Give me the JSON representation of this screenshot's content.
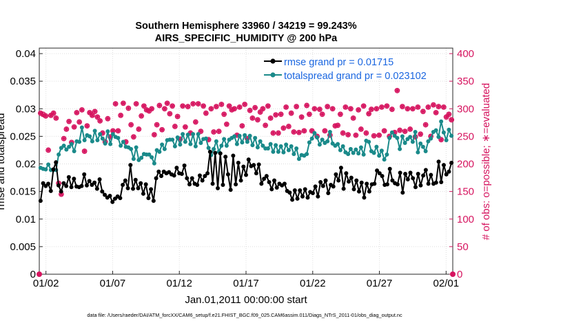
{
  "chart_data": {
    "type": "line",
    "title_line1": "Southern Hemisphere 33960 / 34219 = 99.243%",
    "title_line2": "AIRS_SPECIFIC_HUMIDITY @ 200 hPa",
    "xlabel": "Jan.01,2011 00:00:00 start",
    "ylabel_left": "rmse and totalspread",
    "ylabel_right": "# of obs: o=possible; ∗=evaluated",
    "footer": "data file: /Users/raeder/DAI/ATM_forcXX/CAM6_setup/f.e21.FHIST_BGC.f09_025.CAM6assim.011/Diags_NTrS_2011-01/obs_diag_output.nc",
    "x_range_days": [
      0.5,
      31.5
    ],
    "x_ticks": [
      {
        "day": 1,
        "label": "01/02"
      },
      {
        "day": 6,
        "label": "01/07"
      },
      {
        "day": 11,
        "label": "01/12"
      },
      {
        "day": 16,
        "label": "01/17"
      },
      {
        "day": 21,
        "label": "01/22"
      },
      {
        "day": 26,
        "label": "01/27"
      },
      {
        "day": 31,
        "label": "02/01"
      }
    ],
    "ylim_left": [
      0,
      0.041
    ],
    "yticks_left": [
      "0",
      "0.005",
      "0.01",
      "0.015",
      "0.02",
      "0.025",
      "0.03",
      "0.035",
      "0.04"
    ],
    "ylim_right": [
      0,
      410
    ],
    "yticks_right": [
      "0",
      "50",
      "100",
      "150",
      "200",
      "250",
      "300",
      "350",
      "400"
    ],
    "series": [
      {
        "name": "rmse grand pr = 0.01715",
        "color": "#000000",
        "values": [
          0.0133,
          0.0165,
          0.016,
          0.0164,
          0.0151,
          0.019,
          0.0203,
          0.0161,
          0.015,
          0.0165,
          0.016,
          0.0176,
          0.0158,
          0.0173,
          0.0159,
          0.0158,
          0.016,
          0.0181,
          0.0161,
          0.0169,
          0.0162,
          0.0166,
          0.0155,
          0.0172,
          0.015,
          0.0144,
          0.0139,
          0.0142,
          0.0131,
          0.0137,
          0.0141,
          0.0138,
          0.0162,
          0.017,
          0.0156,
          0.0198,
          0.0155,
          0.0171,
          0.0156,
          0.0165,
          0.0146,
          0.0163,
          0.0138,
          0.0154,
          0.0133,
          0.0174,
          0.0186,
          0.0178,
          0.0186,
          0.0183,
          0.0185,
          0.0181,
          0.0179,
          0.0193,
          0.0183,
          0.0182,
          0.0197,
          0.0174,
          0.0163,
          0.0174,
          0.0164,
          0.0162,
          0.0179,
          0.017,
          0.0178,
          0.0183,
          0.0222,
          0.0164,
          0.022,
          0.0156,
          0.0219,
          0.0162,
          0.0213,
          0.0181,
          0.0153,
          0.0215,
          0.0163,
          0.0202,
          0.017,
          0.0195,
          0.018,
          0.0208,
          0.0196,
          0.0198,
          0.0183,
          0.0199,
          0.0164,
          0.0173,
          0.0178,
          0.0167,
          0.0154,
          0.017,
          0.0157,
          0.0164,
          0.0161,
          0.0164,
          0.0151,
          0.0148,
          0.0135,
          0.0152,
          0.0137,
          0.0152,
          0.0141,
          0.0154,
          0.0139,
          0.0149,
          0.0147,
          0.0159,
          0.0141,
          0.0167,
          0.016,
          0.017,
          0.0147,
          0.0162,
          0.0159,
          0.0181,
          0.017,
          0.0193,
          0.0155,
          0.0183,
          0.0168,
          0.0175,
          0.0154,
          0.017,
          0.015,
          0.0166,
          0.0139,
          0.0164,
          0.015,
          0.0163,
          0.0164,
          0.0188,
          0.0183,
          0.0178,
          0.0162,
          0.0163,
          0.0191,
          0.017,
          0.0165,
          0.0163,
          0.0184,
          0.0148,
          0.0182,
          0.0172,
          0.0184,
          0.0174,
          0.0158,
          0.0182,
          0.0161,
          0.0179,
          0.0189,
          0.0164,
          0.018,
          0.0164,
          0.0166,
          0.0204,
          0.0167,
          0.0198,
          0.0181,
          0.0186,
          0.0202
        ]
      },
      {
        "name": "totalspread grand pr = 0.023102",
        "color": "#1a8a8a",
        "values": [
          0.0193,
          0.0191,
          0.019,
          0.0199,
          0.0189,
          0.0189,
          0.0189,
          0.0217,
          0.0229,
          0.0233,
          0.0226,
          0.0231,
          0.0236,
          0.0223,
          0.0241,
          0.024,
          0.0266,
          0.0243,
          0.0252,
          0.025,
          0.0241,
          0.026,
          0.0243,
          0.0254,
          0.0246,
          0.0237,
          0.0259,
          0.0236,
          0.0254,
          0.0249,
          0.0247,
          0.0233,
          0.024,
          0.0231,
          0.023,
          0.0227,
          0.0209,
          0.023,
          0.0207,
          0.0211,
          0.0218,
          0.0217,
          0.0217,
          0.0212,
          0.0201,
          0.0225,
          0.0222,
          0.0235,
          0.0227,
          0.0243,
          0.0244,
          0.0244,
          0.0232,
          0.0248,
          0.0235,
          0.0254,
          0.024,
          0.0253,
          0.0236,
          0.0254,
          0.0232,
          0.0254,
          0.0238,
          0.0245,
          0.0246,
          0.0229,
          0.0216,
          0.0227,
          0.0241,
          0.0222,
          0.0233,
          0.0245,
          0.0233,
          0.0244,
          0.0247,
          0.025,
          0.0236,
          0.0251,
          0.0239,
          0.0252,
          0.024,
          0.0251,
          0.0234,
          0.0247,
          0.023,
          0.0241,
          0.0233,
          0.0228,
          0.0228,
          0.0236,
          0.0222,
          0.0234,
          0.0222,
          0.0232,
          0.0221,
          0.0235,
          0.0225,
          0.0232,
          0.0218,
          0.0228,
          0.0209,
          0.0216,
          0.0215,
          0.0218,
          0.0239,
          0.0246,
          0.0256,
          0.0248,
          0.0235,
          0.0244,
          0.0238,
          0.0241,
          0.0258,
          0.0237,
          0.0233,
          0.0236,
          0.0225,
          0.0232,
          0.0221,
          0.0218,
          0.0227,
          0.022,
          0.0226,
          0.0219,
          0.023,
          0.0217,
          0.0242,
          0.024,
          0.0223,
          0.022,
          0.0231,
          0.0215,
          0.0224,
          0.0208,
          0.0217,
          0.0247,
          0.0257,
          0.0251,
          0.0247,
          0.0227,
          0.025,
          0.0238,
          0.0245,
          0.0249,
          0.024,
          0.0258,
          0.0221,
          0.0237,
          0.0231,
          0.0223,
          0.0241,
          0.0246,
          0.0258,
          0.0261,
          0.0249,
          0.0277,
          0.0257,
          0.0243,
          0.0262,
          0.0251
        ]
      }
    ],
    "obs_possible": [
      292,
      290,
      287,
      225,
      288,
      292,
      283,
      165,
      145,
      246,
      263,
      277,
      239,
      267,
      293,
      276,
      298,
      223,
      269,
      293,
      288,
      295,
      285,
      278,
      256,
      240,
      282,
      249,
      260,
      309,
      260,
      288,
      310,
      240,
      301,
      271,
      249,
      309,
      263,
      287,
      305,
      298,
      296,
      300,
      253,
      271,
      306,
      262,
      300,
      310,
      291,
      305,
      268,
      286,
      245,
      305,
      267,
      304,
      256,
      309,
      276,
      309,
      259,
      305,
      292,
      244,
      300,
      258,
      304,
      259,
      308,
      290,
      272,
      305,
      298,
      300,
      252,
      303,
      269,
      308,
      246,
      297,
      283,
      302,
      280,
      294,
      300,
      270,
      305,
      283,
      256,
      289,
      256,
      290,
      265,
      303,
      268,
      292,
      258,
      304,
      257,
      285,
      260,
      306,
      290,
      260,
      300,
      250,
      299,
      290,
      260,
      304,
      252,
      300,
      269,
      270,
      290,
      256,
      303,
      253,
      300,
      283,
      252,
      298,
      263,
      305,
      256,
      291,
      299,
      251,
      300,
      252,
      303,
      260,
      305,
      250,
      299,
      257,
      333,
      261,
      304,
      259,
      300,
      263,
      300,
      249,
      303,
      254,
      295,
      271,
      303,
      250,
      307,
      293,
      304,
      244,
      303,
      285,
      290,
      280
    ],
    "obs_evaluated": [
      292,
      289,
      287,
      225,
      288,
      292,
      283,
      165,
      145,
      246,
      263,
      277,
      239,
      267,
      293,
      276,
      298,
      223,
      269,
      293,
      288,
      295,
      285,
      278,
      256,
      240,
      282,
      249,
      260,
      309,
      260,
      288,
      310,
      240,
      301,
      271,
      249,
      309,
      263,
      287,
      305,
      298,
      296,
      300,
      253,
      271,
      306,
      262,
      300,
      310,
      291,
      305,
      268,
      286,
      245,
      305,
      267,
      304,
      256,
      309,
      276,
      309,
      259,
      305,
      292,
      244,
      300,
      258,
      304,
      259,
      308,
      290,
      272,
      305,
      298,
      300,
      252,
      303,
      269,
      308,
      246,
      297,
      283,
      302,
      280,
      294,
      300,
      270,
      305,
      283,
      256,
      289,
      256,
      290,
      265,
      303,
      268,
      292,
      258,
      304,
      257,
      285,
      260,
      306,
      290,
      260,
      300,
      250,
      299,
      290,
      260,
      304,
      252,
      300,
      269,
      270,
      290,
      256,
      303,
      253,
      300,
      283,
      252,
      298,
      263,
      305,
      256,
      291,
      299,
      251,
      300,
      252,
      303,
      260,
      305,
      250,
      299,
      257,
      333,
      261,
      304,
      259,
      300,
      263,
      300,
      249,
      303,
      254,
      295,
      271,
      303,
      250,
      307,
      293,
      304,
      244,
      303,
      285,
      290,
      280
    ],
    "obs_color": "#d6145f",
    "legend_text_color": "#1a66e0",
    "legend_placement": "top-right",
    "grid": true
  }
}
